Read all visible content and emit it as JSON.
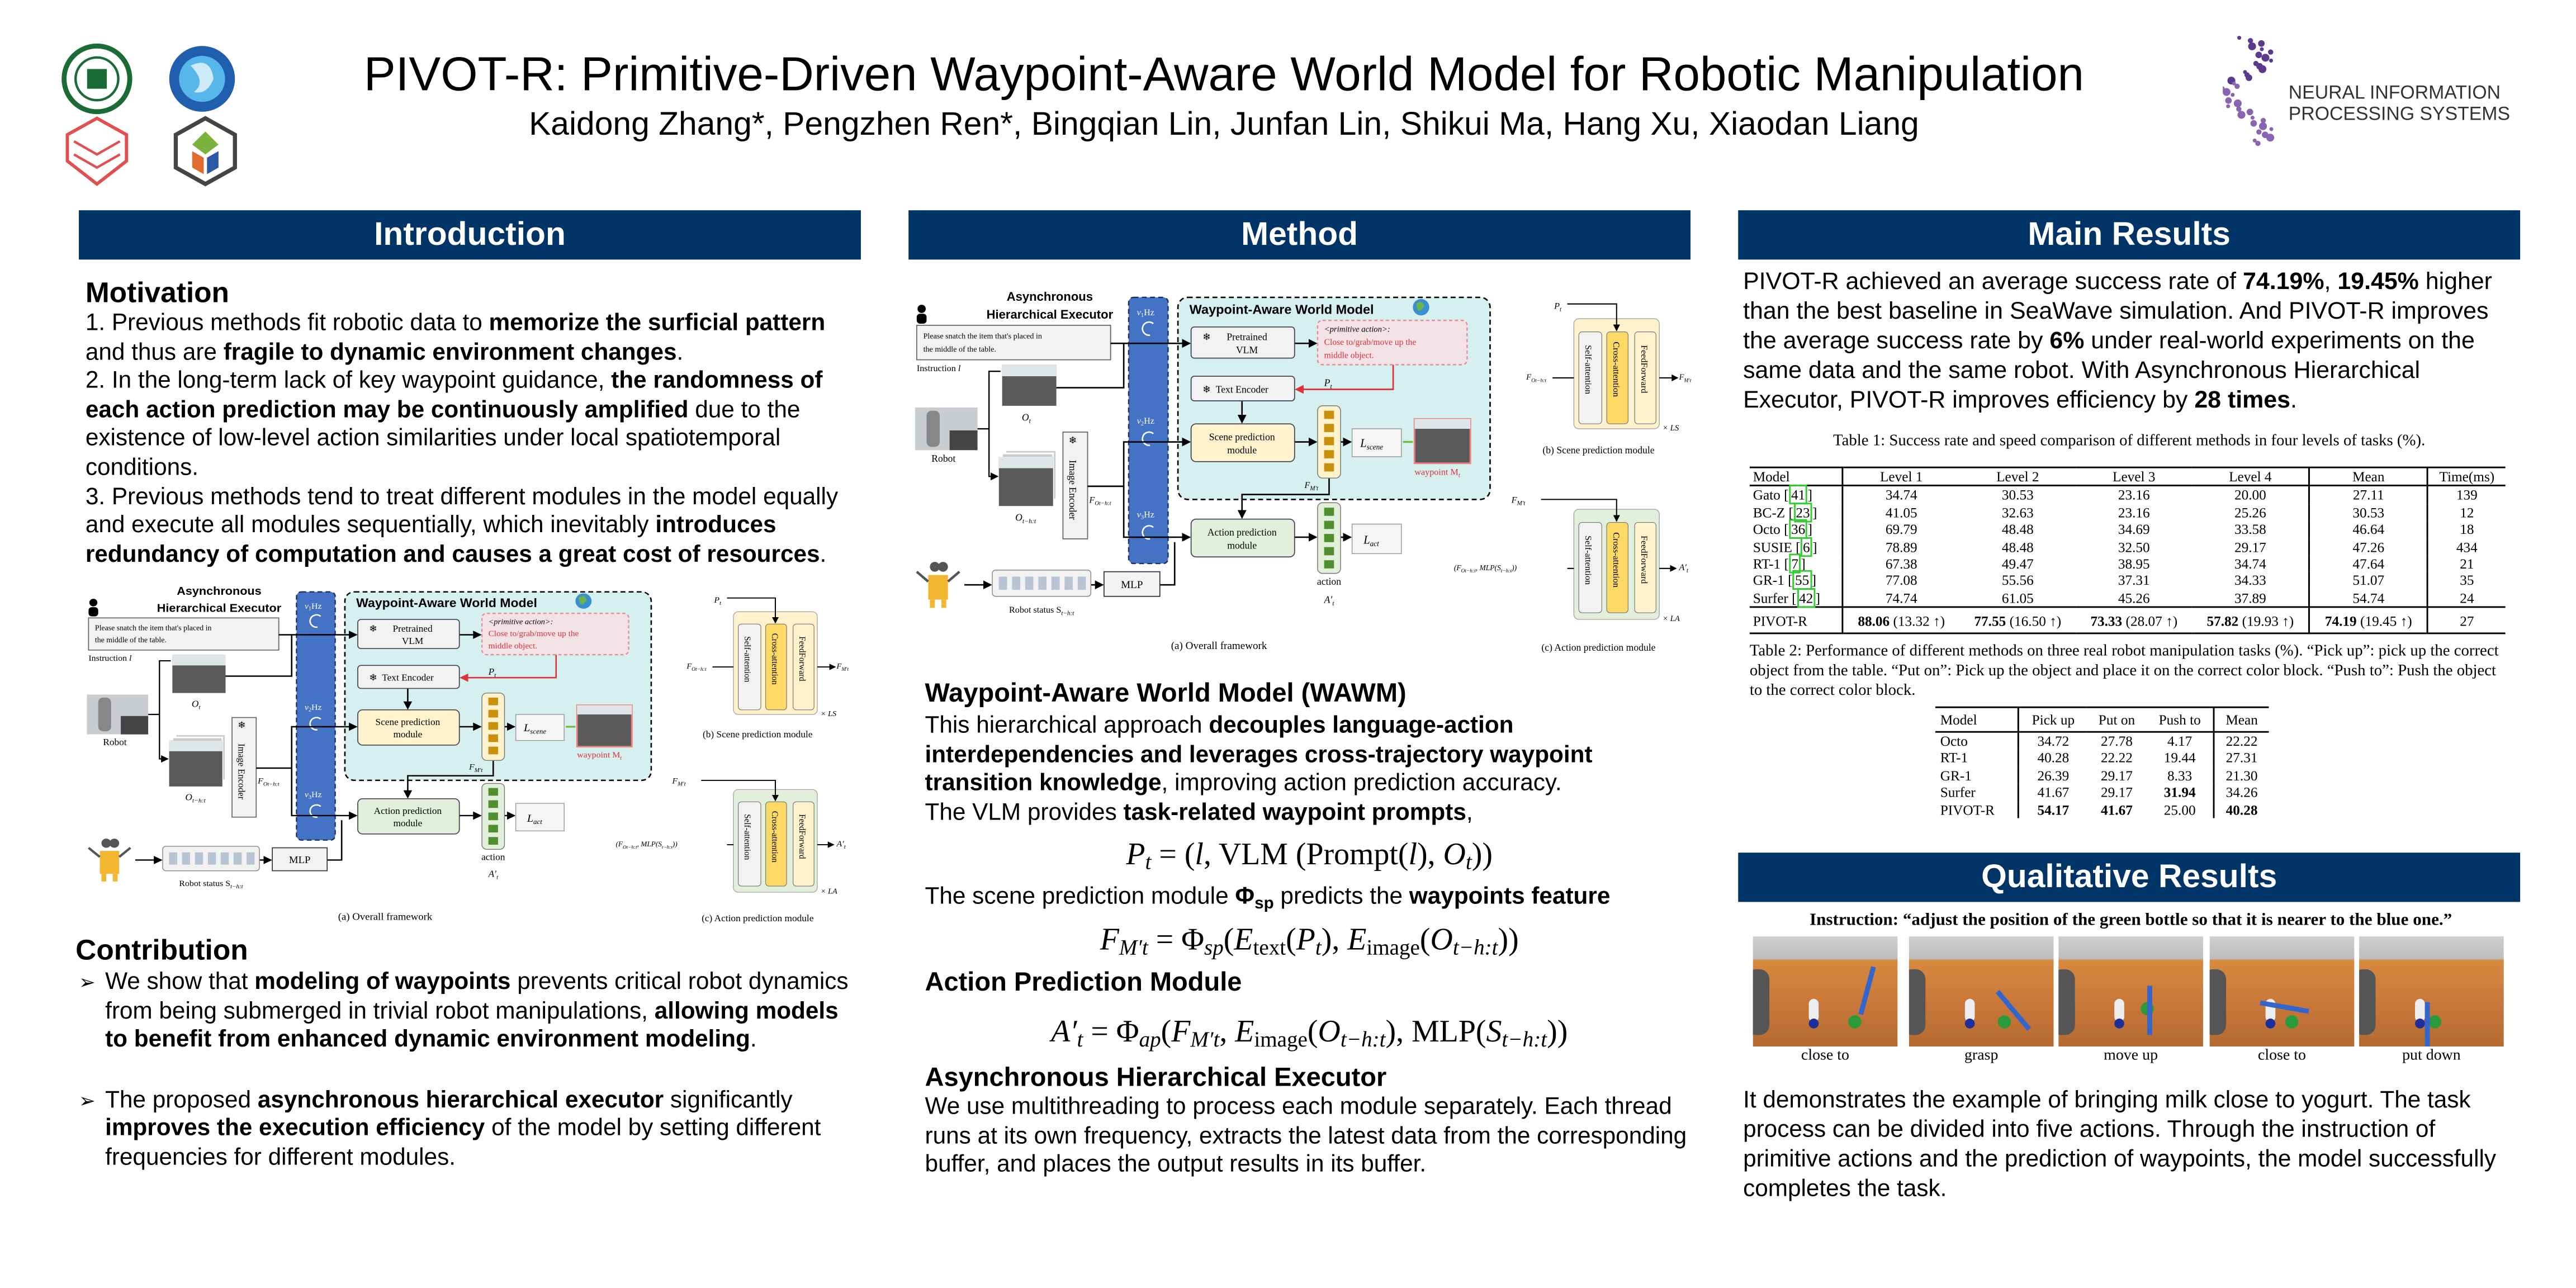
{
  "header": {
    "title": "PIVOT-R: Primitive-Driven Waypoint-Aware World Model for Robotic Manipulation",
    "authors": "Kaidong Zhang*, Pengzhen Ren*, Bingqian Lin, Junfan Lin, Shikui Ma, Hang Xu, Xiaodan Liang",
    "conference_logo": [
      "NEURAL INFORMATION",
      "PROCESSING SYSTEMS"
    ]
  },
  "colors": {
    "header_bar": "#003366",
    "accent_blue": "#4472C4",
    "wawm_bg": "#d5f0ee",
    "scene_module": "#fff2cc",
    "action_module": "#e2efda",
    "red_text": "#e0303a"
  },
  "intro": {
    "header": "Introduction",
    "motivation_title": "Motivation",
    "motivation": [
      [
        {
          "t": "1. Previous methods fit robotic data to "
        },
        {
          "t": "memorize the surficial pattern",
          "b": 1
        },
        {
          "t": " and thus are "
        },
        {
          "t": "fragile to dynamic environment changes",
          "b": 1
        },
        {
          "t": "."
        }
      ],
      [
        {
          "t": "2.  In the long-term lack of key waypoint guidance, "
        },
        {
          "t": "the randomness of each action prediction may be continuously amplified",
          "b": 1
        },
        {
          "t": " due to the existence of low-level action similarities under local spatiotemporal conditions."
        }
      ],
      [
        {
          "t": "3. Previous methods tend to treat different modules in the model equally and execute all modules sequentially, which inevitably "
        },
        {
          "t": "introduces redundancy of computation and causes a great cost of resources",
          "b": 1
        },
        {
          "t": "."
        }
      ]
    ],
    "contribution_title": "Contribution",
    "contributions": [
      [
        {
          "t": "We show that "
        },
        {
          "t": "modeling of waypoints",
          "b": 1
        },
        {
          "t": " prevents critical robot dynamics from being submerged in trivial robot manipulations, "
        },
        {
          "t": "allowing models to benefit from enhanced dynamic environment modeling",
          "b": 1
        },
        {
          "t": "."
        }
      ],
      [
        {
          "t": "The proposed "
        },
        {
          "t": "asynchronous hierarchical executor",
          "b": 1
        },
        {
          "t": " significantly "
        },
        {
          "t": "improves the execution efficiency",
          "b": 1
        },
        {
          "t": " of the model by setting different frequencies for different modules."
        }
      ]
    ]
  },
  "figure": {
    "executor_title": [
      "Asynchronous",
      "Hierarchical Executor"
    ],
    "instruction_text": [
      "Please snatch the item that's placed in",
      "the middle of the table."
    ],
    "instruction_label": "Instruction ",
    "instruction_var": "l",
    "obs": "O",
    "obs_sub": "t",
    "robot": "Robot",
    "obs_hist": "O",
    "obs_hist_sub": "t−h:t",
    "image_encoder": "Image Encoder",
    "feat": "F",
    "feat_sub": "Ot−h:t",
    "freq": [
      {
        "v": "v",
        "n": "1",
        "hz": "Hz"
      },
      {
        "v": "v",
        "n": "2",
        "hz": "Hz"
      },
      {
        "v": "v",
        "n": "3",
        "hz": "Hz"
      }
    ],
    "wawm_title": "Waypoint-Aware World Model",
    "vlm": [
      "Pretrained",
      "VLM"
    ],
    "primitive": [
      "<primitive action>:",
      "Close to/grab/move up the",
      "middle object."
    ],
    "text_encoder": "Text Encoder",
    "pt": "P",
    "pt_sub": "t",
    "scene_module": [
      "Scene prediction",
      "module"
    ],
    "l_scene": "L",
    "l_scene_sub": "scene",
    "waypoint": "waypoint M",
    "waypoint_sub": "t",
    "fm": "F",
    "fm_sub": "M′t",
    "action_module": [
      "Action prediction",
      "module"
    ],
    "l_act": "L",
    "l_act_sub": "act",
    "action": "action",
    "a_t": "A′",
    "a_t_sub": "t",
    "robot_status": "Robot status S",
    "robot_status_sub": "t−h:t",
    "mlp": "MLP",
    "self_attention": "Self-attention",
    "cross_attention": "Cross-attention",
    "feedforward": "FeedForward",
    "ls": "× LS",
    "la": "× LA",
    "c_input": "(F",
    "c_input_sub": "Ot−h:t",
    "c_input_mid": ", MLP(S",
    "c_input_sub2": "t−h:t",
    "c_input_end": "))",
    "caption_a": "(a)  Overall framework",
    "caption_b": "(b)  Scene prediction module",
    "caption_c": "(c)  Action prediction module"
  },
  "method": {
    "header": "Method",
    "wawm_title": "Waypoint-Aware World Model (WAWM)",
    "wawm_text": [
      {
        "t": " This hierarchical approach "
      },
      {
        "t": "decouples language-action interdependencies and leverages cross-trajectory waypoint transition knowledge",
        "b": 1
      },
      {
        "t": ", improving action prediction accuracy."
      }
    ],
    "vlm_text": [
      {
        "t": " The VLM provides "
      },
      {
        "t": "task-related waypoint prompts",
        "b": 1
      },
      {
        "t": ","
      }
    ],
    "eq1": [
      {
        "t": "P",
        "i": 1
      },
      {
        "t": "t",
        "i": 1,
        "s": 1
      },
      {
        "t": " = ("
      },
      {
        "t": "l",
        "i": 1
      },
      {
        "t": ", VLM (Prompt("
      },
      {
        "t": "l",
        "i": 1
      },
      {
        "t": "), "
      },
      {
        "t": "O",
        "i": 1
      },
      {
        "t": "t",
        "i": 1,
        "s": 1
      },
      {
        "t": "))"
      }
    ],
    "scene_text": [
      {
        "t": " The scene prediction module "
      },
      {
        "t": "Φ",
        "b": 1
      },
      {
        "t": "sp",
        "b": 1,
        "s": 1
      },
      {
        "t": " predicts the "
      },
      {
        "t": "waypoints feature",
        "b": 1
      }
    ],
    "eq2": [
      {
        "t": "F",
        "i": 1
      },
      {
        "t": "M′t",
        "i": 1,
        "s": 1
      },
      {
        "t": " = Φ"
      },
      {
        "t": "sp",
        "i": 1,
        "s": 1
      },
      {
        "t": "("
      },
      {
        "t": "E",
        "i": 1
      },
      {
        "t": "text",
        "s": 1
      },
      {
        "t": "("
      },
      {
        "t": "P",
        "i": 1
      },
      {
        "t": "t",
        "i": 1,
        "s": 1
      },
      {
        "t": "), "
      },
      {
        "t": "E",
        "i": 1
      },
      {
        "t": "image",
        "s": 1
      },
      {
        "t": "("
      },
      {
        "t": "O",
        "i": 1
      },
      {
        "t": "t−h:t",
        "i": 1,
        "s": 1
      },
      {
        "t": "))"
      }
    ],
    "apm_title": "Action Prediction Module",
    "eq3": [
      {
        "t": "A′",
        "i": 1
      },
      {
        "t": "t",
        "i": 1,
        "s": 1
      },
      {
        "t": " = Φ"
      },
      {
        "t": "ap",
        "i": 1,
        "s": 1
      },
      {
        "t": "("
      },
      {
        "t": "F",
        "i": 1
      },
      {
        "t": "M′t",
        "i": 1,
        "s": 1
      },
      {
        "t": ", "
      },
      {
        "t": "E",
        "i": 1
      },
      {
        "t": "image",
        "s": 1
      },
      {
        "t": "("
      },
      {
        "t": "O",
        "i": 1
      },
      {
        "t": "t−h:t",
        "i": 1,
        "s": 1
      },
      {
        "t": "), MLP("
      },
      {
        "t": "S",
        "i": 1
      },
      {
        "t": "t−h:t",
        "i": 1,
        "s": 1
      },
      {
        "t": "))"
      }
    ],
    "ahe_title": "Asynchronous Hierarchical Executor",
    "ahe_text": [
      {
        "t": " We use multithreading to process each module separately. Each thread runs at its own frequency, extracts the latest data from the corresponding buffer, and places the output results in its buffer."
      }
    ]
  },
  "results": {
    "header": "Main Results",
    "summary": [
      {
        "t": "PIVOT-R achieved an average success rate of "
      },
      {
        "t": "74.19%",
        "b": 1
      },
      {
        "t": ", "
      },
      {
        "t": "19.45%",
        "b": 1
      },
      {
        "t": " higher than the best baseline in SeaWave simulation. And PIVOT-R improves the average success rate by "
      },
      {
        "t": "6%",
        "b": 1
      },
      {
        "t": " under real-world experiments on the same data and the same robot. With Asynchronous Hierarchical Executor, PIVOT-R improves efficiency by "
      },
      {
        "t": "28 times",
        "b": 1
      },
      {
        "t": "."
      }
    ],
    "table1": {
      "caption": "Table 1: Success rate and speed comparison of different methods in four levels of tasks (%).",
      "columns": [
        "Model",
        "Level 1",
        "Level 2",
        "Level 3",
        "Level 4",
        "Mean",
        "Time(ms)"
      ],
      "rows": [
        {
          "model": "Gato",
          "cite": "41",
          "values": [
            "34.74",
            "30.53",
            "23.16",
            "20.00",
            "27.11",
            "139"
          ]
        },
        {
          "model": "BC-Z",
          "cite": "23",
          "values": [
            "41.05",
            "32.63",
            "23.16",
            "25.26",
            "30.53",
            "12"
          ]
        },
        {
          "model": "Octo",
          "cite": "36",
          "values": [
            "69.79",
            "48.48",
            "34.69",
            "33.58",
            "46.64",
            "18"
          ]
        },
        {
          "model": "SUSIE",
          "cite": "6",
          "values": [
            "78.89",
            "48.48",
            "32.50",
            "29.17",
            "47.26",
            "434"
          ]
        },
        {
          "model": "RT-1",
          "cite": "7",
          "values": [
            "67.38",
            "49.47",
            "38.95",
            "34.74",
            "47.64",
            "21"
          ]
        },
        {
          "model": "GR-1",
          "cite": "55",
          "values": [
            "77.08",
            "55.56",
            "37.31",
            "34.33",
            "51.07",
            "35"
          ]
        },
        {
          "model": "Surfer",
          "cite": "42",
          "values": [
            "74.74",
            "61.05",
            "45.26",
            "37.89",
            "54.74",
            "24"
          ]
        }
      ],
      "ours": {
        "model": "PIVOT-R",
        "values": [
          {
            "v": "88.06",
            "d": "(13.32 ↑)"
          },
          {
            "v": "77.55",
            "d": "(16.50 ↑)"
          },
          {
            "v": "73.33",
            "d": "(28.07 ↑)"
          },
          {
            "v": "57.82",
            "d": "(19.93 ↑)"
          },
          {
            "v": "74.19",
            "d": "(19.45 ↑)"
          }
        ],
        "time": "27"
      }
    },
    "table2": {
      "caption": "Table 2: Performance of different methods on three real robot manipulation tasks (%). “Pick up”: pick up the correct object from the table. “Put on”: Pick up the object and place it on the correct color block. “Push to”: Push the object to the correct color block.",
      "columns": [
        "Model",
        "Pick up",
        "Put on",
        "Push to",
        "Mean"
      ],
      "rows": [
        {
          "model": "Octo",
          "values": [
            "34.72",
            "27.78",
            "4.17",
            "22.22"
          ],
          "bold": []
        },
        {
          "model": "RT-1",
          "values": [
            "40.28",
            "22.22",
            "19.44",
            "27.31"
          ],
          "bold": []
        },
        {
          "model": "GR-1",
          "values": [
            "26.39",
            "29.17",
            "8.33",
            "21.30"
          ],
          "bold": []
        },
        {
          "model": "Surfer",
          "values": [
            "41.67",
            "29.17",
            "31.94",
            "34.26"
          ],
          "bold": [
            2
          ]
        },
        {
          "model": "PIVOT-R",
          "values": [
            "54.17",
            "41.67",
            "25.00",
            "40.28"
          ],
          "bold": [
            0,
            1,
            3
          ]
        }
      ]
    }
  },
  "qualitative": {
    "header": "Qualitative Results",
    "instruction": "Instruction: “adjust the position of the green bottle so that it is nearer to the blue one.”",
    "steps": [
      "close to",
      "grasp",
      "move up",
      "close to",
      "put down"
    ],
    "description": [
      {
        "t": "It demonstrates the example of bringing milk close to yogurt. The task process can be divided into five actions. Through the instruction of primitive actions and the prediction of waypoints, the model successfully completes the task."
      }
    ]
  }
}
